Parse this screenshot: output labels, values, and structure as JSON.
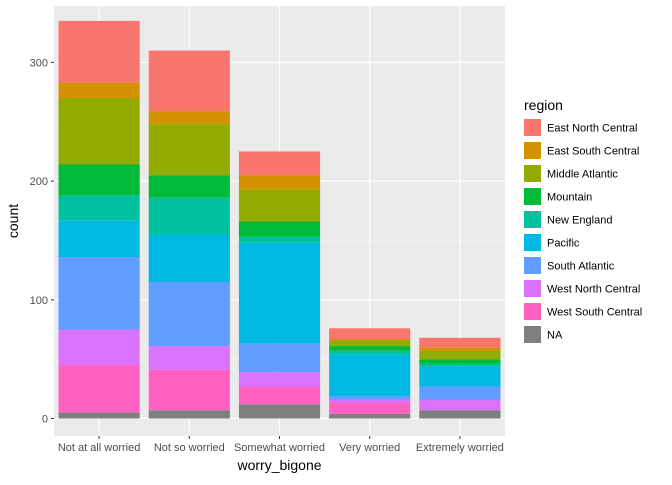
{
  "chart_data": {
    "type": "bar",
    "stacked": true,
    "xlabel": "worry_bigone",
    "ylabel": "count",
    "ylim": [
      0,
      345
    ],
    "yticks": [
      0,
      100,
      200,
      300
    ],
    "grid": true,
    "legend": {
      "title": "region",
      "position": "right"
    },
    "categories": [
      "Not at all worried",
      "Not so worried",
      "Somewhat worried",
      "Very worried",
      "Extremely worried"
    ],
    "series": [
      {
        "name": "NA",
        "color": "#7F7F7F",
        "values": [
          5,
          7,
          12,
          4,
          7
        ]
      },
      {
        "name": "West South Central",
        "color": "#FF61C3",
        "values": [
          40,
          34,
          15,
          9,
          0
        ]
      },
      {
        "name": "West North Central",
        "color": "#DB72FB",
        "values": [
          30,
          20,
          12,
          3,
          9
        ]
      },
      {
        "name": "South Atlantic",
        "color": "#619CFF",
        "values": [
          61,
          54,
          24,
          3,
          11
        ]
      },
      {
        "name": "Pacific",
        "color": "#00B9E3",
        "values": [
          31,
          40,
          85,
          35,
          17
        ]
      },
      {
        "name": "New England",
        "color": "#00C19F",
        "values": [
          21,
          31,
          5,
          3,
          2
        ]
      },
      {
        "name": "Mountain",
        "color": "#00BA38",
        "values": [
          26,
          19,
          13,
          4,
          4
        ]
      },
      {
        "name": "Middle Atlantic",
        "color": "#93AA00",
        "values": [
          56,
          43,
          27,
          5,
          7
        ]
      },
      {
        "name": "East South Central",
        "color": "#D39200",
        "values": [
          13,
          11,
          12,
          1,
          3
        ]
      },
      {
        "name": "East North Central",
        "color": "#F8766D",
        "values": [
          52,
          51,
          20,
          9,
          8
        ]
      }
    ],
    "legend_order": [
      "East North Central",
      "East South Central",
      "Middle Atlantic",
      "Mountain",
      "New England",
      "Pacific",
      "South Atlantic",
      "West North Central",
      "West South Central",
      "NA"
    ],
    "colors": {
      "panel": "#EBEBEB",
      "grid_major": "#FFFFFF",
      "background": "#FFFFFF"
    }
  }
}
